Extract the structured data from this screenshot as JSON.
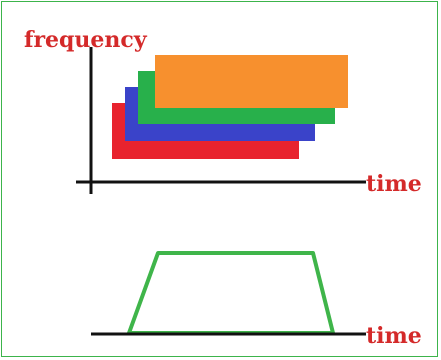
{
  "top_chart": {
    "y_axis_label": "frequency",
    "x_axis_label": "time",
    "bars": [
      {
        "color": "#e8232e"
      },
      {
        "color": "#3a43c9"
      },
      {
        "color": "#28b04b"
      },
      {
        "color": "#f7902e"
      }
    ]
  },
  "bottom_chart": {
    "x_axis_label": "time",
    "trapezoid_color": "#3fb54a"
  },
  "colors": {
    "label": "#d42a2a",
    "axis": "#111111",
    "border": "#3cb44b"
  }
}
